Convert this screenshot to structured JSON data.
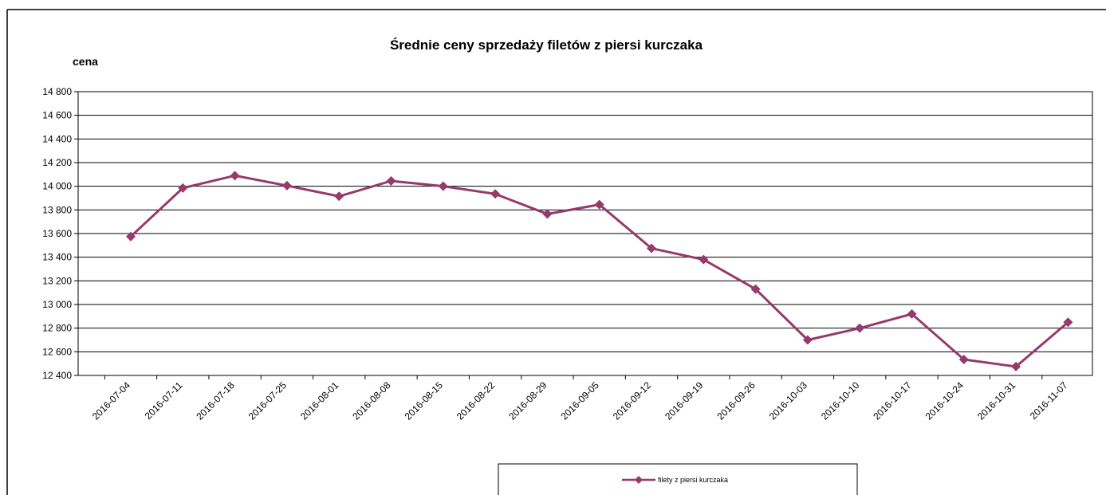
{
  "chart_data": {
    "type": "line",
    "title": "Średnie ceny sprzedaży filetów z piersi kurczaka",
    "y_label": "cena",
    "categories": [
      "2016-07-04",
      "2016-07-11",
      "2016-07-18",
      "2016-07-25",
      "2016-08-01",
      "2016-08-08",
      "2016-08-15",
      "2016-08-22",
      "2016-08-29",
      "2016-09-05",
      "2016-09-12",
      "2016-09-19",
      "2016-09-26",
      "2016-10-03",
      "2016-10-10",
      "2016-10-17",
      "2016-10-24",
      "2016-10-31",
      "2016-11-07"
    ],
    "series": [
      {
        "name": "filety z piersi kurczaka",
        "color": "#953a6b",
        "values": [
          13575,
          13985,
          14090,
          14005,
          13915,
          14045,
          14000,
          13935,
          13765,
          13845,
          13475,
          13380,
          13130,
          12700,
          12800,
          12920,
          12535,
          12475,
          12850
        ]
      }
    ],
    "ylim": [
      12400,
      14800
    ],
    "yticks": [
      {
        "value": 12400,
        "label": "12 400"
      },
      {
        "value": 12600,
        "label": "12 600"
      },
      {
        "value": 12800,
        "label": "12 800"
      },
      {
        "value": 13000,
        "label": "13 000"
      },
      {
        "value": 13200,
        "label": "13 200"
      },
      {
        "value": 13400,
        "label": "13 400"
      },
      {
        "value": 13600,
        "label": "13 600"
      },
      {
        "value": 13800,
        "label": "13 800"
      },
      {
        "value": 14000,
        "label": "14 000"
      },
      {
        "value": 14200,
        "label": "14 200"
      },
      {
        "value": 14400,
        "label": "14 400"
      },
      {
        "value": 14600,
        "label": "14 600"
      },
      {
        "value": 14800,
        "label": "14 800"
      }
    ],
    "grid": true
  }
}
